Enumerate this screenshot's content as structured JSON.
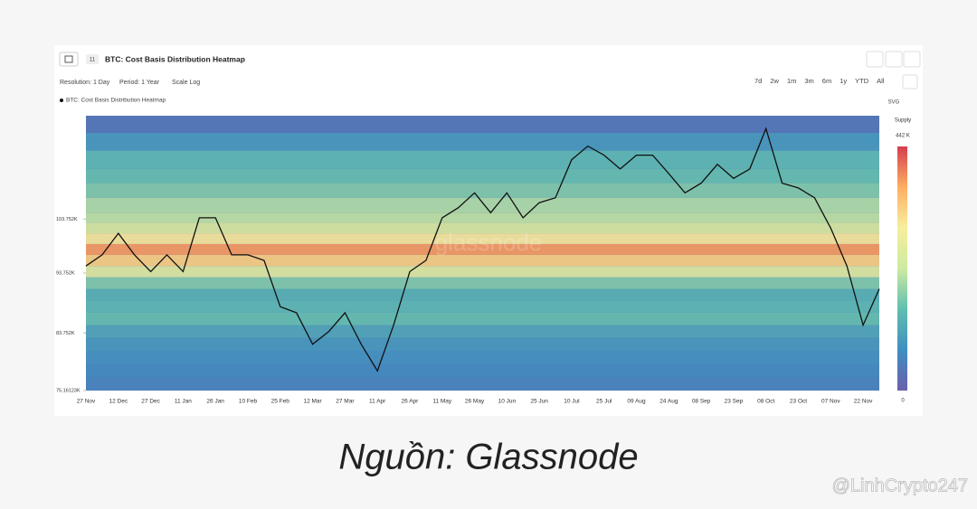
{
  "header": {
    "badge": "11",
    "title": "BTC: Cost Basis Distribution Heatmap"
  },
  "controls": {
    "resolution": "Resolution: 1 Day",
    "period": "Period: 1 Year",
    "scale": "Scale Log",
    "ranges": [
      "7d",
      "2w",
      "1m",
      "3m",
      "6m",
      "1y",
      "YTD",
      "All"
    ],
    "export": "SVG"
  },
  "chart_data": {
    "type": "heatmap",
    "categories": [
      "27 Nov",
      null,
      "12 Dec",
      null,
      "27 Dec",
      null,
      "11 Jan",
      null,
      "26 Jan",
      null,
      "10 Feb",
      null,
      "25 Feb",
      null,
      "12 Mar",
      null,
      "27 Mar",
      null,
      "11 Apr",
      null,
      "26 Apr",
      null,
      "11 May",
      null,
      "26 May",
      null,
      "10 Jun",
      null,
      "25 Jun",
      null,
      "10 Jul",
      null,
      "25 Jul",
      null,
      "09 Aug",
      null,
      "24 Aug",
      null,
      "08 Sep",
      null,
      "23 Sep",
      null,
      "08 Oct",
      null,
      "23 Oct",
      null,
      "07 Nov",
      null,
      "22 Nov",
      null
    ],
    "series": [
      {
        "name": "BTC: Cost Basis Distribution Heatmap",
        "color": "#111111",
        "values": [
          95,
          97,
          101,
          97,
          94,
          97,
          94,
          104,
          104,
          97,
          97,
          96,
          88,
          87,
          82,
          84,
          87,
          82,
          78,
          85,
          94,
          96,
          104,
          106,
          109,
          105,
          109,
          104,
          107,
          108,
          116,
          119,
          117,
          114,
          117,
          117,
          113,
          109,
          111,
          115,
          112,
          114,
          123,
          111,
          110,
          108,
          102,
          95,
          85,
          91
        ]
      }
    ],
    "log_scale": true,
    "ylim": [
      75.16123,
      126
    ],
    "yticks": [
      {
        "value": 75.16123,
        "label": "75.16123K"
      },
      {
        "value": 83.752,
        "label": "83.752K"
      },
      {
        "value": 93.752,
        "label": "93.752K"
      },
      {
        "value": 103.752,
        "label": "103.752K"
      }
    ],
    "heatmap": {
      "label": "Supply",
      "bins": [
        75.16123,
        77,
        79,
        81,
        83,
        85,
        87,
        89,
        91,
        93,
        95,
        97,
        99,
        101,
        103,
        105,
        108,
        111,
        114,
        118,
        122,
        126
      ],
      "supply": [
        60,
        70,
        80,
        90,
        110,
        150,
        140,
        130,
        170,
        250,
        330,
        380,
        300,
        240,
        210,
        200,
        170,
        150,
        140,
        90,
        40
      ],
      "clim": [
        0,
        442
      ],
      "ticks": [
        {
          "value": 442,
          "label": "442 K"
        },
        0
      ],
      "colorscale": [
        "#6b5fad",
        "#3f8fc0",
        "#5fbfb0",
        "#cdeaa0",
        "#f6ef9c",
        "#fdae61",
        "#d53e4f"
      ]
    },
    "watermark": "glassnode"
  },
  "caption": "Nguồn: Glassnode",
  "credit": "@LinhCrypto247"
}
